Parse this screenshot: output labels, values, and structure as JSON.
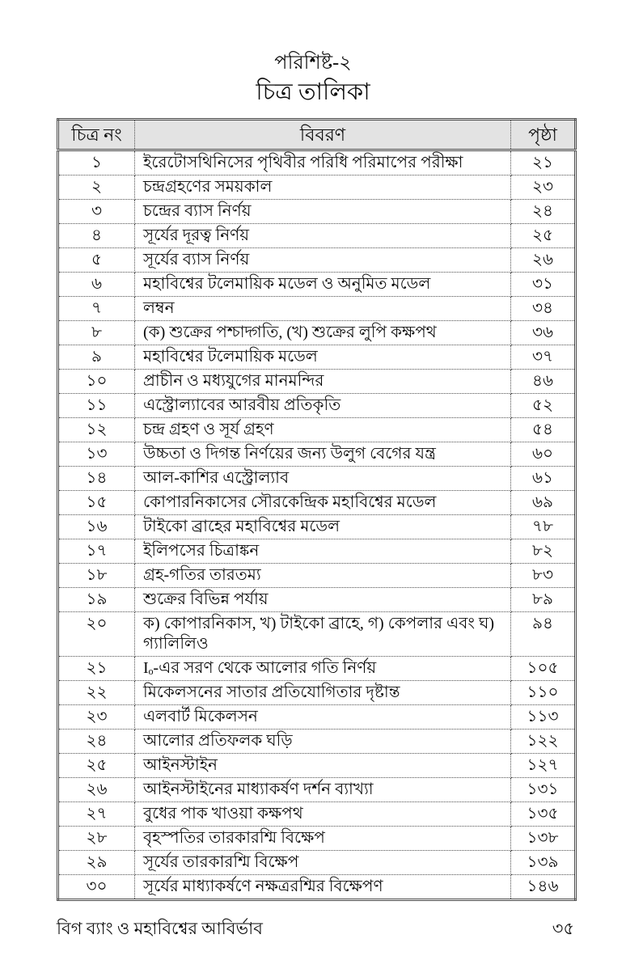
{
  "page": {
    "title": "পরিশিষ্ট-২",
    "subtitle": "চিত্র তালিকা"
  },
  "table": {
    "headers": {
      "number": "চিত্র নং",
      "description": "বিবরণ",
      "page": "পৃষ্ঠা"
    },
    "rows": [
      {
        "no": "১",
        "description": "ইরেটোসথিনিসের পৃথিবীর পরিধি পরিমাপের পরীক্ষা",
        "page": "২১"
      },
      {
        "no": "২",
        "description": "চন্দ্রগ্রহণের সময়কাল",
        "page": "২৩"
      },
      {
        "no": "৩",
        "description": "চন্দ্রের ব্যাস নির্ণয়",
        "page": "২৪"
      },
      {
        "no": "৪",
        "description": "সূর্যের দূরত্ব নির্ণয়",
        "page": "২৫"
      },
      {
        "no": "৫",
        "description": "সূর্যের ব্যাস নির্ণয়",
        "page": "২৬"
      },
      {
        "no": "৬",
        "description": "মহাবিশ্বের টলেমায়িক মডেল ও অনুমিত মডেল",
        "page": "৩১"
      },
      {
        "no": "৭",
        "description": "লম্বন",
        "page": "৩৪"
      },
      {
        "no": "৮",
        "description": "(ক) শুক্রের পশ্চাদ্গতি, (খ) শুক্রের লুপি কক্ষপথ",
        "page": "৩৬"
      },
      {
        "no": "৯",
        "description": "মহাবিশ্বের টলেমায়িক মডেল",
        "page": "৩৭"
      },
      {
        "no": "১০",
        "description": "প্রাচীন ও মধ্যযুগের মানমন্দির",
        "page": "৪৬"
      },
      {
        "no": "১১",
        "description": "এস্ট্রোল্যাবের আরবীয় প্রতিকৃতি",
        "page": "৫২"
      },
      {
        "no": "১২",
        "description": "চন্দ্র গ্রহণ ও সূর্য গ্রহণ",
        "page": "৫৪"
      },
      {
        "no": "১৩",
        "description": "উচ্চতা ও দিগন্ত নির্ণয়ের জন্য উলুগ বেগের যন্ত্র",
        "page": "৬০"
      },
      {
        "no": "১৪",
        "description": "আল-কাশির এস্ট্রোল্যাব",
        "page": "৬১"
      },
      {
        "no": "১৫",
        "description": "কোপারনিকাসের সৌরকেন্দ্রিক মহাবিশ্বের মডেল",
        "page": "৬৯"
      },
      {
        "no": "১৬",
        "description": "টাইকো ব্রাহের মহাবিশ্বের মডেল",
        "page": "৭৮"
      },
      {
        "no": "১৭",
        "description": "ইলিপসের চিত্রাঙ্কন",
        "page": "৮২"
      },
      {
        "no": "১৮",
        "description": "গ্রহ-গতির তারতম্য",
        "page": "৮৩"
      },
      {
        "no": "১৯",
        "description": "শুক্রের বিভিন্ন পর্যায়",
        "page": "৮৯"
      },
      {
        "no": "২০",
        "description": "ক) কোপারনিকাস, খ) টাইকো ব্রাহে, গ) কেপলার এবং ঘ) গ্যালিলিও",
        "page": "৯৪"
      },
      {
        "no": "২১",
        "description": "Iₒ-এর সরণ থেকে আলোর গতি নির্ণয়",
        "page": "১০৫"
      },
      {
        "no": "২২",
        "description": "মিকেলসনের সাতার প্রতিযোগিতার দৃষ্টান্ত",
        "page": "১১০"
      },
      {
        "no": "২৩",
        "description": "এলবার্ট মিকেলসন",
        "page": "১১৩"
      },
      {
        "no": "২৪",
        "description": "আলোর প্রতিফলক ঘড়ি",
        "page": "১২২"
      },
      {
        "no": "২৫",
        "description": "আইনস্টাইন",
        "page": "১২৭"
      },
      {
        "no": "২৬",
        "description": "আইনস্টাইনের মাধ্যাকর্ষণ দর্শন ব্যাখ্যা",
        "page": "১৩১"
      },
      {
        "no": "২৭",
        "description": "বুধের পাক খাওয়া কক্ষপথ",
        "page": "১৩৫"
      },
      {
        "no": "২৮",
        "description": "বৃহস্পতির তারকারশ্মি বিক্ষেপ",
        "page": "১৩৮"
      },
      {
        "no": "২৯",
        "description": "সূর্যের তারকারশ্মি বিক্ষেপ",
        "page": "১৩৯"
      },
      {
        "no": "৩০",
        "description": "সূর্যের মাধ্যাকর্ষণে নক্ষত্ররশ্মির বিক্ষেপণ",
        "page": "১৪৬"
      }
    ]
  },
  "footer": {
    "book_title": "বিগ ব্যাং ও মহাবিশ্বের আবির্ভাব",
    "page_number": "৩৫"
  },
  "colors": {
    "header_background": "#e3e3e3",
    "border": "#4f4f4f",
    "text": "#0a0a0a",
    "page_background": "#ffffff"
  }
}
